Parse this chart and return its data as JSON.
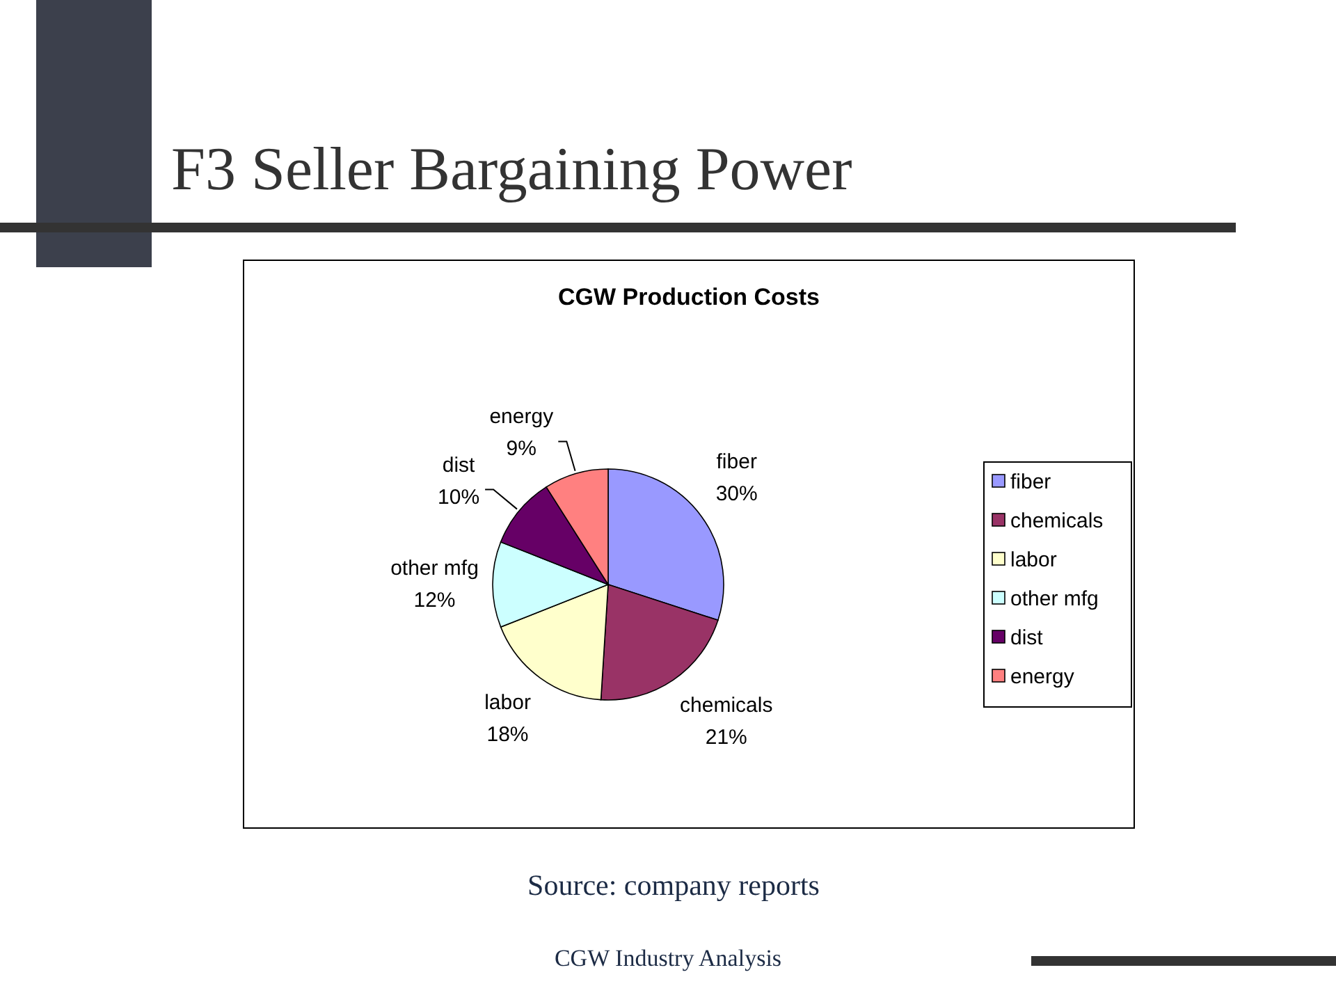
{
  "chart_data": {
    "type": "pie",
    "title": "F3 Seller Bargaining Power",
    "subtitle": "CGW Production Costs",
    "categories": [
      "fiber",
      "chemicals",
      "labor",
      "other mfg",
      "dist",
      "energy"
    ],
    "values": [
      30,
      21,
      18,
      12,
      10,
      9
    ],
    "colors": [
      "#9999ff",
      "#993366",
      "#ffffcc",
      "#ccffff",
      "#660066",
      "#ff8080"
    ],
    "value_labels": [
      "30%",
      "21%",
      "18%",
      "12%",
      "10%",
      "9%"
    ],
    "legend": "right",
    "annotations": [
      "Source: company reports",
      "CGW Industry Analysis"
    ]
  }
}
